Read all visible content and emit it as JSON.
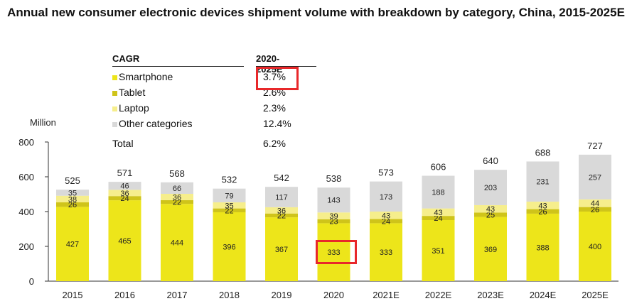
{
  "title": "Annual new consumer electronic devices shipment volume with breakdown by category, China, 2015-2025E",
  "legend": {
    "header_left": "CAGR",
    "header_right": "2020-2025E",
    "rows": [
      {
        "label": "Smartphone",
        "value": "3.7%",
        "color": "#ede51a"
      },
      {
        "label": "Tablet",
        "value": "2.6%",
        "color": "#cfc41a"
      },
      {
        "label": "Laptop",
        "value": "2.3%",
        "color": "#f6ee8c"
      },
      {
        "label": "Other categories",
        "value": "12.4%",
        "color": "#d9d9d9"
      },
      {
        "label": "Total",
        "value": "6.2%"
      }
    ]
  },
  "chart_data": {
    "type": "bar",
    "stacked": true,
    "categories": [
      "2015",
      "2016",
      "2017",
      "2018",
      "2019",
      "2020",
      "2021E",
      "2022E",
      "2023E",
      "2024E",
      "2025E"
    ],
    "series": [
      {
        "name": "Smartphone",
        "color": "#ede51a",
        "values": [
          427,
          465,
          444,
          396,
          367,
          333,
          333,
          351,
          369,
          388,
          400
        ]
      },
      {
        "name": "Tablet",
        "color": "#cfc41a",
        "values": [
          26,
          24,
          22,
          22,
          22,
          23,
          24,
          24,
          25,
          26,
          26
        ]
      },
      {
        "name": "Laptop",
        "color": "#f6ee8c",
        "values": [
          38,
          36,
          36,
          35,
          36,
          39,
          43,
          43,
          43,
          43,
          44
        ]
      },
      {
        "name": "Other categories",
        "color": "#d9d9d9",
        "values": [
          35,
          46,
          66,
          79,
          117,
          143,
          173,
          188,
          203,
          231,
          257
        ]
      }
    ],
    "totals": [
      525,
      571,
      568,
      532,
      542,
      538,
      573,
      606,
      640,
      688,
      727
    ],
    "ylabel": "Million",
    "ylim": [
      0,
      800
    ],
    "yticks": [
      0,
      200,
      400,
      600,
      800
    ],
    "grid": false,
    "annotations": [
      {
        "type": "highlight-box",
        "target": "Smartphone 2020-2025E CAGR",
        "value": "3.7%",
        "color": "#e8282a"
      },
      {
        "type": "highlight-box",
        "target": "Smartphone 2020",
        "value": "333",
        "color": "#e8282a"
      }
    ]
  }
}
